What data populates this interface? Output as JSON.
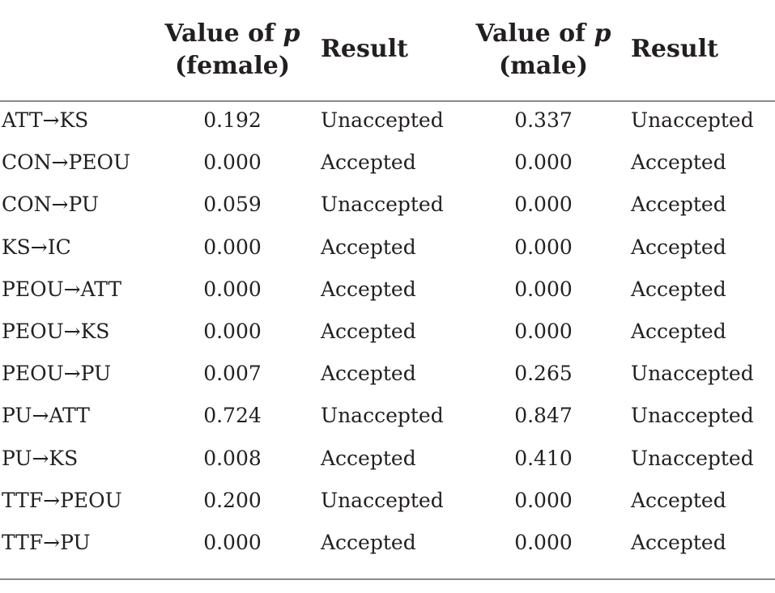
{
  "headers": {
    "col1": "",
    "p_female_line1_prefix": "Value of ",
    "p_symbol": "p",
    "p_female_line2": "(female)",
    "result1": "Result",
    "p_male_line1_prefix": "Value of ",
    "p_male_line2": "(male)",
    "result2": "Result"
  },
  "rows": [
    {
      "path": "ATT→KS",
      "p_female": "0.192",
      "result_female": "Unaccepted",
      "p_male": "0.337",
      "result_male": "Unaccepted"
    },
    {
      "path": "CON→PEOU",
      "p_female": "0.000",
      "result_female": "Accepted",
      "p_male": "0.000",
      "result_male": "Accepted"
    },
    {
      "path": "CON→PU",
      "p_female": "0.059",
      "result_female": "Unaccepted",
      "p_male": "0.000",
      "result_male": "Accepted"
    },
    {
      "path": "KS→IC",
      "p_female": "0.000",
      "result_female": "Accepted",
      "p_male": "0.000",
      "result_male": "Accepted"
    },
    {
      "path": "PEOU→ATT",
      "p_female": "0.000",
      "result_female": "Accepted",
      "p_male": "0.000",
      "result_male": "Accepted"
    },
    {
      "path": "PEOU→KS",
      "p_female": "0.000",
      "result_female": "Accepted",
      "p_male": "0.000",
      "result_male": "Accepted"
    },
    {
      "path": "PEOU→PU",
      "p_female": "0.007",
      "result_female": "Accepted",
      "p_male": "0.265",
      "result_male": "Unaccepted"
    },
    {
      "path": "PU→ATT",
      "p_female": "0.724",
      "result_female": "Unaccepted",
      "p_male": "0.847",
      "result_male": "Unaccepted"
    },
    {
      "path": "PU→KS",
      "p_female": "0.008",
      "result_female": "Accepted",
      "p_male": "0.410",
      "result_male": "Unaccepted"
    },
    {
      "path": "TTF→PEOU",
      "p_female": "0.200",
      "result_female": "Unaccepted",
      "p_male": "0.000",
      "result_male": "Accepted"
    },
    {
      "path": "TTF→PU",
      "p_female": "0.000",
      "result_female": "Accepted",
      "p_male": "0.000",
      "result_male": "Accepted"
    }
  ]
}
